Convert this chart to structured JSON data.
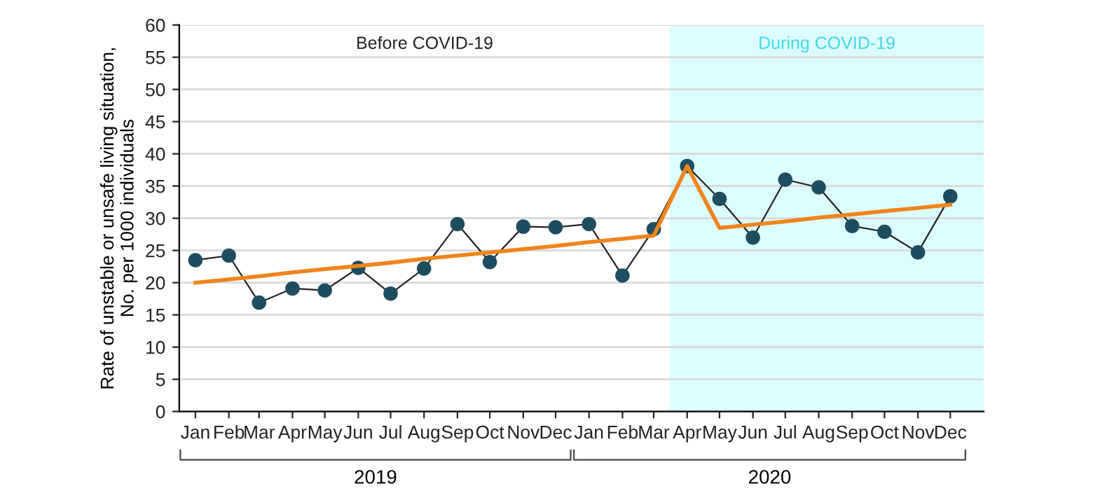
{
  "chart_data": {
    "type": "line",
    "ylabel": "Rate of unstable or unsafe living situation,\nNo. per 1000 individuals",
    "x": [
      "2019-01",
      "2019-02",
      "2019-03",
      "2019-04",
      "2019-05",
      "2019-06",
      "2019-07",
      "2019-08",
      "2019-09",
      "2019-10",
      "2019-11",
      "2019-12",
      "2020-01",
      "2020-02",
      "2020-03",
      "2020-04",
      "2020-05",
      "2020-06",
      "2020-07",
      "2020-08",
      "2020-09",
      "2020-10",
      "2020-11",
      "2020-12"
    ],
    "series": [
      {
        "color": "#1d4e5f",
        "marker": "circle",
        "values": [
          23.5,
          24.2,
          16.9,
          19.1,
          18.8,
          22.3,
          18.3,
          22.2,
          29.1,
          23.2,
          28.7,
          28.6,
          29.1,
          21.1,
          28.3,
          38.1,
          33.0,
          27.0,
          36.0,
          34.8,
          28.8,
          27.9,
          24.7,
          33.4
        ]
      },
      {
        "color": "#f0841c",
        "marker": "none",
        "values": [
          20.0,
          20.5,
          21.0,
          21.6,
          22.1,
          22.6,
          23.1,
          23.7,
          24.2,
          24.7,
          25.2,
          25.7,
          26.3,
          26.8,
          27.3,
          38.1,
          28.5,
          29.0,
          29.5,
          30.1,
          30.6,
          31.1,
          31.6,
          32.1
        ]
      }
    ],
    "xlim": [
      "2018-12-17",
      "2021-01-01"
    ],
    "xticks": [
      {
        "value": "2019-01",
        "label": "Jan"
      },
      {
        "value": "2019-02",
        "label": "Feb"
      },
      {
        "value": "2019-03",
        "label": "Mar"
      },
      {
        "value": "2019-04",
        "label": "Apr"
      },
      {
        "value": "2019-05",
        "label": "May"
      },
      {
        "value": "2019-06",
        "label": "Jun"
      },
      {
        "value": "2019-07",
        "label": "Jul"
      },
      {
        "value": "2019-08",
        "label": "Aug"
      },
      {
        "value": "2019-09",
        "label": "Sep"
      },
      {
        "value": "2019-10",
        "label": "Oct"
      },
      {
        "value": "2019-11",
        "label": "Nov"
      },
      {
        "value": "2019-12",
        "label": "Dec"
      },
      {
        "value": "2020-01",
        "label": "Jan"
      },
      {
        "value": "2020-02",
        "label": "Feb"
      },
      {
        "value": "2020-03",
        "label": "Mar"
      },
      {
        "value": "2020-04",
        "label": "Apr"
      },
      {
        "value": "2020-05",
        "label": "May"
      },
      {
        "value": "2020-06",
        "label": "Jun"
      },
      {
        "value": "2020-07",
        "label": "Jul"
      },
      {
        "value": "2020-08",
        "label": "Aug"
      },
      {
        "value": "2020-09",
        "label": "Sep"
      },
      {
        "value": "2020-10",
        "label": "Oct"
      },
      {
        "value": "2020-11",
        "label": "Nov"
      },
      {
        "value": "2020-12",
        "label": "Dec"
      }
    ],
    "ylim": [
      0,
      60
    ],
    "yticks": [
      0,
      5,
      10,
      15,
      20,
      25,
      30,
      35,
      40,
      45,
      50,
      55,
      60
    ],
    "grid": "y",
    "legend": false,
    "bands": [
      {
        "axis": "x",
        "from": "2020-03-16",
        "to": "2021-01-01",
        "label": "During COVID-19",
        "color": "#dcfdfd"
      }
    ],
    "annotations": [
      "Before COVID-19",
      "2019",
      "2020"
    ]
  }
}
